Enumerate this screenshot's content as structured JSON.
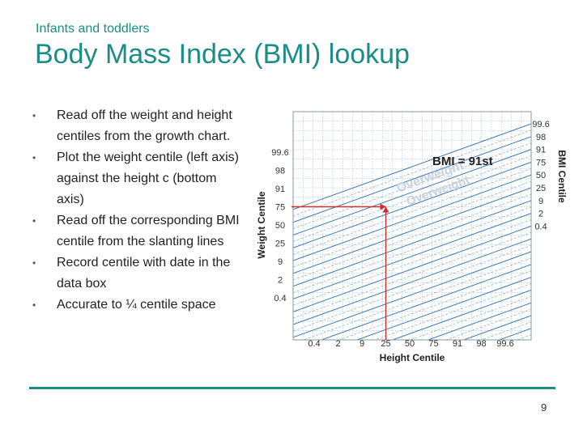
{
  "slide": {
    "subtitle": "Infants and toddlers",
    "title": "Body Mass Index (BMI) lookup",
    "bullets": [
      "Read off the weight and height centiles from the growth chart.",
      "Plot the weight centile (left axis) against the height c (bottom axis)",
      "Read off the corresponding BMI centile from the slanting lines",
      "Record centile with date in the data box",
      "Accurate to ¼ centile space"
    ],
    "page_number": "9"
  },
  "chart": {
    "weight_axis_label": "Weight Centile",
    "height_axis_label": "Height Centile",
    "bmi_axis_label": "BMI Centile",
    "weight_ticks": [
      "99.6",
      "98",
      "91",
      "75",
      "50",
      "25",
      "9",
      "2",
      "0.4"
    ],
    "height_ticks": [
      "0.4",
      "2",
      "9",
      "25",
      "50",
      "75",
      "91",
      "98",
      "99.6"
    ],
    "bmi_ticks": [
      "99.6",
      "98",
      "91",
      "75",
      "50",
      "25",
      "9",
      "2",
      "0.4"
    ],
    "bmi_result": "BMI = 91st",
    "zone_labels": [
      "Overweight",
      "Overweight"
    ],
    "marker_color": "#d0302a",
    "grid_color": "#9fb8c8",
    "band_color": "#3a7ab8"
  },
  "chart_data": {
    "type": "scatter",
    "x_ticks": [
      "0.4",
      "2",
      "9",
      "25",
      "50",
      "75",
      "91",
      "98",
      "99.6"
    ],
    "y_ticks": [
      "0.4",
      "2",
      "9",
      "25",
      "50",
      "75",
      "91",
      "98",
      "99.6"
    ],
    "xlabel": "Height Centile",
    "ylabel": "Weight Centile",
    "y2label": "BMI Centile",
    "y2_ticks": [
      "0.4",
      "2",
      "9",
      "25",
      "50",
      "75",
      "91",
      "98",
      "99.6"
    ],
    "point": {
      "x_centile": "25",
      "y_centile": "75"
    },
    "annotation": "BMI = 91st"
  }
}
